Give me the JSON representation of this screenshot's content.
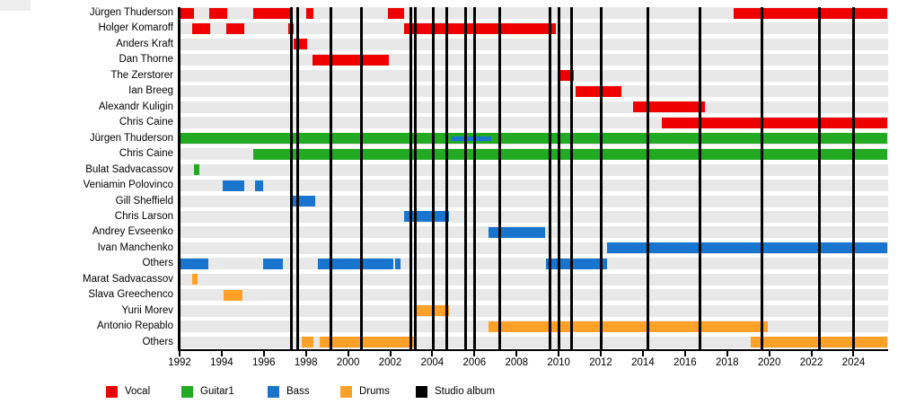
{
  "chart_data": {
    "type": "timeline",
    "title": "",
    "description": "Band members timeline (Gantt-style) with studio album release markers",
    "x_axis": {
      "start": 1992,
      "end": 2025.6,
      "tick_years": [
        1992,
        1994,
        1996,
        1998,
        2000,
        2002,
        2004,
        2006,
        2008,
        2010,
        2012,
        2014,
        2016,
        2018,
        2020,
        2022,
        2024
      ]
    },
    "colors": {
      "Vocal": "#ee0000",
      "Guitar1": "#22aa22",
      "Bass": "#1874cd",
      "Drums": "#ffa028",
      "Studio album": "#000000",
      "row_band": "#e8e8e8"
    },
    "legend": [
      {
        "label": "Vocal",
        "color": "#ee0000"
      },
      {
        "label": "Guitar1",
        "color": "#22aa22"
      },
      {
        "label": "Bass",
        "color": "#1874cd"
      },
      {
        "label": "Drums",
        "color": "#ffa028"
      },
      {
        "label": "Studio album",
        "color": "#000000"
      }
    ],
    "rows": [
      {
        "label": "Jürgen Thuderson",
        "instrument": "Vocal",
        "periods": [
          [
            1992.0,
            1992.7
          ],
          [
            1993.4,
            1994.25
          ],
          [
            1995.5,
            1997.25
          ],
          [
            1998.0,
            1998.35
          ],
          [
            2001.9,
            2002.65
          ],
          [
            2018.3,
            2025.6
          ]
        ]
      },
      {
        "label": "Holger Komaroff",
        "instrument": "Vocal",
        "periods": [
          [
            1992.6,
            1993.45
          ],
          [
            1994.2,
            1995.05
          ],
          [
            1997.15,
            1997.4
          ],
          [
            2002.65,
            2009.85
          ]
        ]
      },
      {
        "label": "Anders Kraft",
        "instrument": "Vocal",
        "periods": [
          [
            1997.4,
            1998.05
          ]
        ]
      },
      {
        "label": "Dan Thorne",
        "instrument": "Vocal",
        "periods": [
          [
            1998.3,
            2001.95
          ]
        ]
      },
      {
        "label": "The Zerstorer",
        "instrument": "Vocal",
        "periods": [
          [
            2009.95,
            2010.7
          ]
        ]
      },
      {
        "label": "Ian Breeg",
        "instrument": "Vocal",
        "periods": [
          [
            2010.8,
            2013.0
          ]
        ]
      },
      {
        "label": "Alexandr Kuligin",
        "instrument": "Vocal",
        "periods": [
          [
            2013.55,
            2016.95
          ]
        ]
      },
      {
        "label": "Chris Caine",
        "instrument": "Vocal",
        "periods": [
          [
            2014.9,
            2025.6
          ]
        ]
      },
      {
        "label": "Jürgen Thuderson",
        "instrument": "Guitar1",
        "periods": [
          [
            1992.0,
            2025.6
          ]
        ],
        "overlays": [
          {
            "instrument": "Bass",
            "period": [
              2004.9,
              2006.8
            ]
          }
        ]
      },
      {
        "label": "Chris Caine",
        "instrument": "Guitar1",
        "periods": [
          [
            1995.5,
            2025.6
          ]
        ]
      },
      {
        "label": "Bulat Sadvacassov",
        "instrument": "Guitar1",
        "periods": [
          [
            1992.7,
            1992.95
          ]
        ]
      },
      {
        "label": "Veniamin Polovinco",
        "instrument": "Bass",
        "periods": [
          [
            1994.05,
            1995.05
          ],
          [
            1995.6,
            1995.95
          ]
        ]
      },
      {
        "label": "Gill Sheffield",
        "instrument": "Bass",
        "periods": [
          [
            1997.25,
            1998.45
          ]
        ]
      },
      {
        "label": "Chris Larson",
        "instrument": "Bass",
        "periods": [
          [
            2002.65,
            2004.8
          ]
        ]
      },
      {
        "label": "Andrey Evseenko",
        "instrument": "Bass",
        "periods": [
          [
            2006.65,
            2009.35
          ]
        ]
      },
      {
        "label": "Ivan Manchenko",
        "instrument": "Bass",
        "periods": [
          [
            2012.3,
            2025.6
          ]
        ]
      },
      {
        "label": "Others",
        "instrument": "Bass",
        "periods": [
          [
            1992.05,
            1993.35
          ],
          [
            1995.95,
            1996.9
          ],
          [
            1998.55,
            2002.15
          ],
          [
            2002.25,
            2002.5
          ],
          [
            2009.4,
            2012.3
          ]
        ]
      },
      {
        "label": "Marat Sadvacassov",
        "instrument": "Drums",
        "periods": [
          [
            1992.6,
            1992.85
          ]
        ]
      },
      {
        "label": "Slava Greechenco",
        "instrument": "Drums",
        "periods": [
          [
            1994.1,
            1995.0
          ]
        ]
      },
      {
        "label": "Yurii Morev",
        "instrument": "Drums",
        "periods": [
          [
            2003.15,
            2004.8
          ]
        ]
      },
      {
        "label": "Antonio Repablo",
        "instrument": "Drums",
        "periods": [
          [
            2006.65,
            2019.95
          ]
        ]
      },
      {
        "label": "Others",
        "instrument": "Drums",
        "periods": [
          [
            1997.8,
            1998.35
          ],
          [
            1998.65,
            2003.15
          ],
          [
            2019.1,
            2025.6
          ]
        ]
      }
    ],
    "studio_albums_years": [
      1997.3,
      1997.6,
      1999.2,
      2000.65,
      2003.0,
      2003.2,
      2004.05,
      2004.7,
      2005.6,
      2006.0,
      2007.2,
      2009.6,
      2010.0,
      2010.6,
      2012.0,
      2014.25,
      2016.7,
      2019.65,
      2022.4,
      2024.0
    ]
  }
}
